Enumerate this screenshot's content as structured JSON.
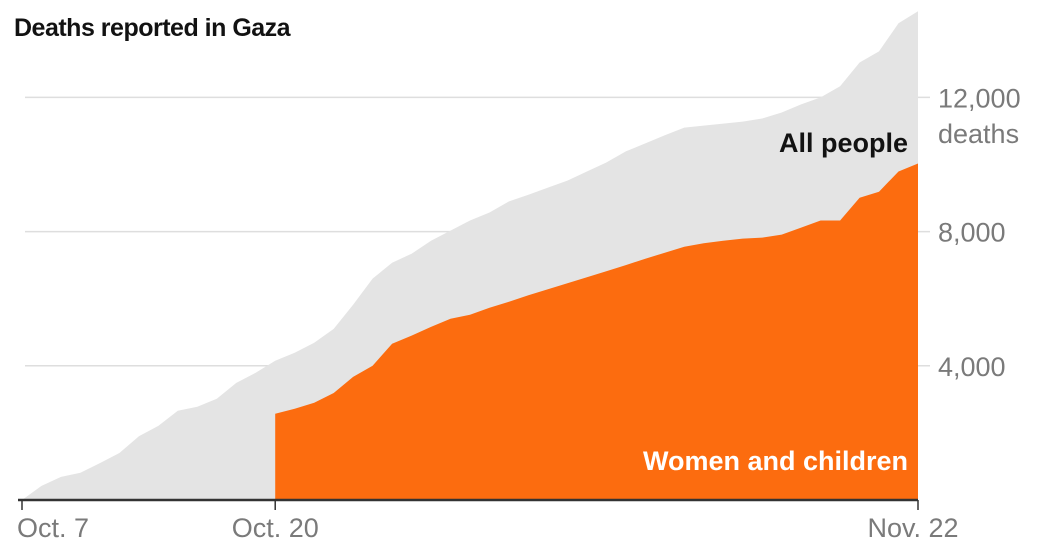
{
  "chart_data": {
    "type": "area",
    "title": "Deaths reported in Gaza",
    "x_unit": "days since Oct. 7",
    "xlim": [
      0,
      46
    ],
    "ylim": [
      0,
      14600
    ],
    "ylabel_unit": "deaths",
    "y_ticks": [
      {
        "value": 4000,
        "label": "4,000"
      },
      {
        "value": 8000,
        "label": "8,000"
      },
      {
        "value": 12000,
        "label": "12,000"
      }
    ],
    "x_ticks": [
      {
        "value": 0,
        "label": "Oct. 7"
      },
      {
        "value": 13,
        "label": "Oct. 20"
      },
      {
        "value": 46,
        "label": "Nov. 22"
      }
    ],
    "grid": true,
    "series": [
      {
        "name": "All people",
        "color": "#e4e4e4",
        "label_color": "#121212",
        "x": [
          0,
          1,
          2,
          3,
          4,
          5,
          6,
          7,
          8,
          9,
          10,
          11,
          12,
          13,
          14,
          15,
          16,
          17,
          18,
          19,
          20,
          21,
          22,
          23,
          24,
          25,
          26,
          27,
          28,
          29,
          30,
          31,
          32,
          33,
          34,
          35,
          36,
          37,
          38,
          39,
          40,
          41,
          42,
          43,
          44,
          45,
          46
        ],
        "values": [
          0,
          420,
          690,
          810,
          1100,
          1400,
          1900,
          2210,
          2660,
          2780,
          3020,
          3490,
          3790,
          4150,
          4390,
          4690,
          5100,
          5820,
          6600,
          7070,
          7340,
          7730,
          8030,
          8330,
          8570,
          8900,
          9100,
          9310,
          9520,
          9790,
          10060,
          10390,
          10630,
          10870,
          11100,
          11160,
          11220,
          11280,
          11370,
          11550,
          11790,
          12000,
          12330,
          13040,
          13370,
          14210,
          14570
        ]
      },
      {
        "name": "Women and children",
        "color": "#fc6c0f",
        "label_color": "#ffffff",
        "x": [
          13,
          14,
          15,
          16,
          17,
          18,
          19,
          20,
          21,
          22,
          23,
          24,
          25,
          26,
          27,
          28,
          29,
          30,
          31,
          32,
          33,
          34,
          35,
          36,
          37,
          38,
          39,
          40,
          41,
          42,
          43,
          44,
          45,
          46
        ],
        "values": [
          2570,
          2720,
          2900,
          3190,
          3670,
          4000,
          4660,
          4900,
          5160,
          5400,
          5520,
          5730,
          5910,
          6100,
          6280,
          6460,
          6640,
          6820,
          7000,
          7190,
          7370,
          7550,
          7650,
          7730,
          7790,
          7820,
          7910,
          8120,
          8330,
          8330,
          9010,
          9190,
          9790,
          10030
        ]
      }
    ]
  }
}
